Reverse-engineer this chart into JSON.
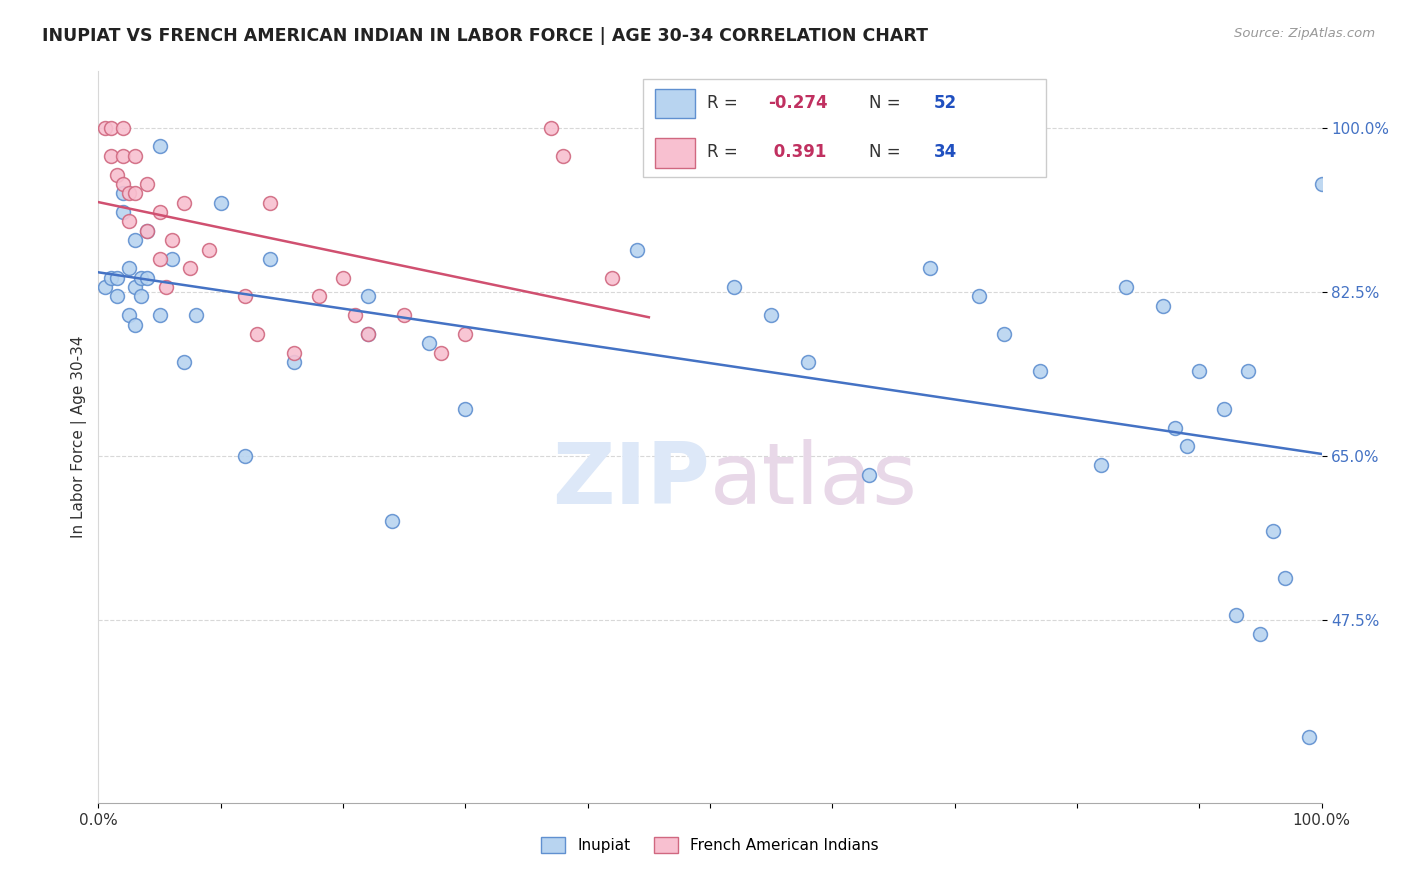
{
  "title": "INUPIAT VS FRENCH AMERICAN INDIAN IN LABOR FORCE | AGE 30-34 CORRELATION CHART",
  "source_text": "Source: ZipAtlas.com",
  "ylabel": "In Labor Force | Age 30-34",
  "watermark_zip": "ZIP",
  "watermark_atlas": "atlas",
  "inupiat_R": "-0.274",
  "inupiat_N": "52",
  "french_R": "0.391",
  "french_N": "34",
  "xlim": [
    0.0,
    1.0
  ],
  "ylim": [
    0.28,
    1.06
  ],
  "ytick_vals": [
    0.475,
    0.65,
    0.825,
    1.0
  ],
  "ytick_labels": [
    "47.5%",
    "65.0%",
    "82.5%",
    "100.0%"
  ],
  "xtick_vals": [
    0.0,
    0.1,
    0.2,
    0.3,
    0.4,
    0.5,
    0.6,
    0.7,
    0.8,
    0.9,
    1.0
  ],
  "xtick_labels": [
    "0.0%",
    "",
    "",
    "",
    "",
    "",
    "",
    "",
    "",
    "",
    "100.0%"
  ],
  "inupiat_color": "#b8d4f0",
  "inupiat_edge_color": "#6090d0",
  "inupiat_line_color": "#4472c4",
  "french_color": "#f8c0d0",
  "french_edge_color": "#d06880",
  "french_line_color": "#d05070",
  "grid_color": "#d8d8d8",
  "bg_color": "#ffffff",
  "ytick_color": "#4472c4",
  "inupiat_x": [
    0.005,
    0.01,
    0.015,
    0.015,
    0.02,
    0.02,
    0.025,
    0.025,
    0.03,
    0.03,
    0.03,
    0.035,
    0.035,
    0.04,
    0.04,
    0.05,
    0.05,
    0.06,
    0.07,
    0.08,
    0.1,
    0.12,
    0.14,
    0.16,
    0.22,
    0.22,
    0.24,
    0.27,
    0.3,
    0.44,
    0.52,
    0.55,
    0.58,
    0.63,
    0.68,
    0.72,
    0.74,
    0.77,
    0.82,
    0.84,
    0.87,
    0.88,
    0.89,
    0.9,
    0.92,
    0.93,
    0.94,
    0.95,
    0.96,
    0.97,
    0.99,
    1.0
  ],
  "inupiat_y": [
    0.83,
    0.84,
    0.84,
    0.82,
    0.93,
    0.91,
    0.85,
    0.8,
    0.88,
    0.83,
    0.79,
    0.84,
    0.82,
    0.89,
    0.84,
    0.98,
    0.8,
    0.86,
    0.75,
    0.8,
    0.92,
    0.65,
    0.86,
    0.75,
    0.82,
    0.78,
    0.58,
    0.77,
    0.7,
    0.87,
    0.83,
    0.8,
    0.75,
    0.63,
    0.85,
    0.82,
    0.78,
    0.74,
    0.64,
    0.83,
    0.81,
    0.68,
    0.66,
    0.74,
    0.7,
    0.48,
    0.74,
    0.46,
    0.57,
    0.52,
    0.35,
    0.94
  ],
  "french_x": [
    0.005,
    0.01,
    0.01,
    0.015,
    0.02,
    0.02,
    0.02,
    0.025,
    0.025,
    0.03,
    0.03,
    0.04,
    0.04,
    0.05,
    0.05,
    0.055,
    0.06,
    0.07,
    0.075,
    0.09,
    0.12,
    0.13,
    0.14,
    0.16,
    0.18,
    0.2,
    0.21,
    0.22,
    0.25,
    0.28,
    0.3,
    0.37,
    0.38,
    0.42
  ],
  "french_y": [
    1.0,
    1.0,
    0.97,
    0.95,
    1.0,
    0.97,
    0.94,
    0.93,
    0.9,
    0.97,
    0.93,
    0.94,
    0.89,
    0.91,
    0.86,
    0.83,
    0.88,
    0.92,
    0.85,
    0.87,
    0.82,
    0.78,
    0.92,
    0.76,
    0.82,
    0.84,
    0.8,
    0.78,
    0.8,
    0.76,
    0.78,
    1.0,
    0.97,
    0.84
  ]
}
